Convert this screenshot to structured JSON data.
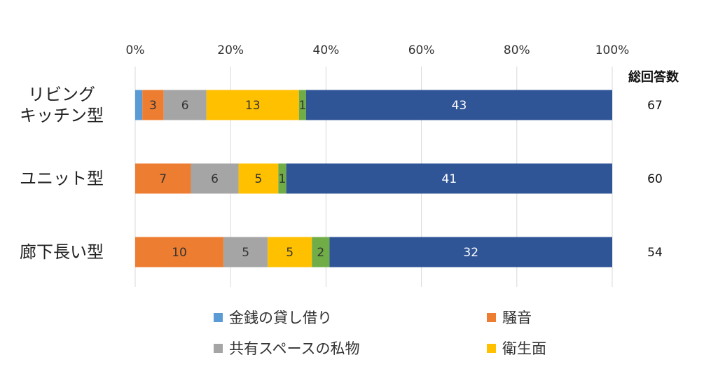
{
  "chart_data": {
    "type": "bar",
    "orientation": "horizontal",
    "stacking": "percent",
    "categories": [
      "リビング\nキッチン型",
      "ユニット型",
      "廊下長い型"
    ],
    "series": [
      {
        "name": "金銭の貸し借り",
        "color": "#5b9bd5",
        "values": [
          1,
          0,
          0
        ]
      },
      {
        "name": "騒音",
        "color": "#ed7d31",
        "values": [
          3,
          7,
          10
        ]
      },
      {
        "name": "共有スペースの私物",
        "color": "#a5a5a5",
        "values": [
          6,
          6,
          5
        ]
      },
      {
        "name": "衛生面",
        "color": "#ffc000",
        "values": [
          13,
          5,
          5
        ]
      },
      {
        "name": "",
        "color": "#70ad47",
        "values": [
          1,
          1,
          2
        ]
      },
      {
        "name": "",
        "color": "#2f5597",
        "values": [
          43,
          41,
          32
        ]
      }
    ],
    "segment_labels": [
      [
        "",
        "3",
        "6",
        "13",
        "1",
        "43"
      ],
      [
        "",
        "7",
        "6",
        "5",
        "1",
        "41"
      ],
      [
        "",
        "10",
        "5",
        "5",
        "2",
        "32"
      ]
    ],
    "total_header": "総回答数",
    "totals": [
      "67",
      "60",
      "54"
    ],
    "xticks": [
      "0%",
      "20%",
      "40%",
      "60%",
      "80%",
      "100%"
    ],
    "xlim": [
      0,
      100
    ],
    "xaxis_position": "top",
    "grid": true,
    "legend_position": "bottom",
    "legend_entries_visible": [
      "金銭の貸し借り",
      "騒音",
      "共有スペースの私物",
      "衛生面"
    ]
  }
}
